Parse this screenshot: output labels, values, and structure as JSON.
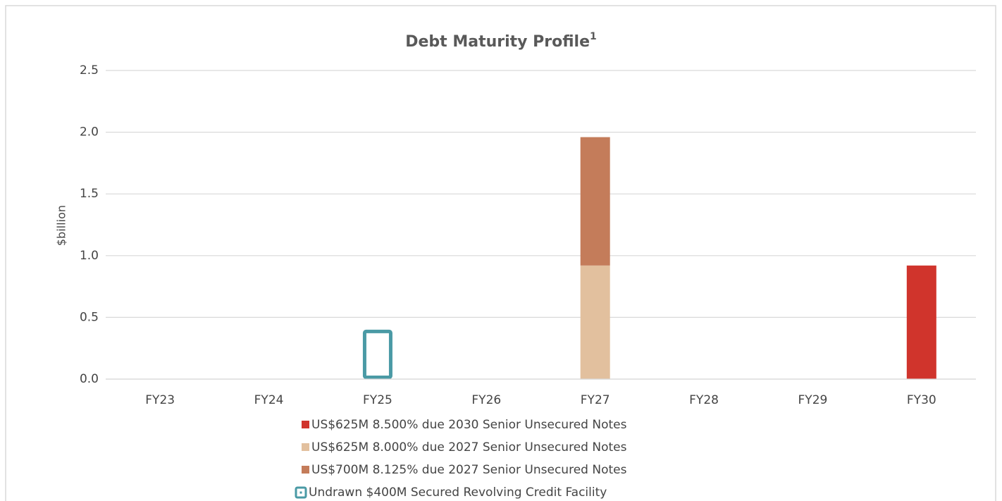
{
  "chart_data": {
    "type": "stacked_bar",
    "title": "Debt Maturity Profile",
    "title_superscript": "1",
    "y_label": "$billion",
    "categories": [
      "FY23",
      "FY24",
      "FY25",
      "FY26",
      "FY27",
      "FY28",
      "FY29",
      "FY30"
    ],
    "series": [
      {
        "name": "US$625M 8.500% due 2030 Senior Unsecured Notes",
        "color": "#d0342c",
        "values": [
          null,
          null,
          null,
          null,
          null,
          null,
          null,
          0.92
        ]
      },
      {
        "name": "US$625M 8.000% due 2027 Senior Unsecured Notes",
        "color": "#e2c09e",
        "values": [
          null,
          null,
          null,
          null,
          0.92,
          null,
          null,
          null
        ]
      },
      {
        "name": "US$700M 8.125% due 2027 Senior Unsecured Notes",
        "color": "#c47c5a",
        "values": [
          null,
          null,
          null,
          null,
          1.04,
          null,
          null,
          null
        ]
      },
      {
        "name": "Undrawn $400M Secured Revolving Credit Facility",
        "color": "#4a9aa5",
        "outline": true,
        "values": [
          null,
          null,
          0.4,
          null,
          null,
          null,
          null,
          null
        ]
      }
    ],
    "ylim": [
      0,
      2.5
    ],
    "yticks": [
      {
        "value": 0,
        "label": "0.0"
      },
      0.5,
      {
        "value": 1,
        "label": "1.0"
      },
      1.5,
      {
        "value": 2,
        "label": "2.0"
      },
      2.5
    ],
    "grid": true,
    "legend": "bottom"
  }
}
